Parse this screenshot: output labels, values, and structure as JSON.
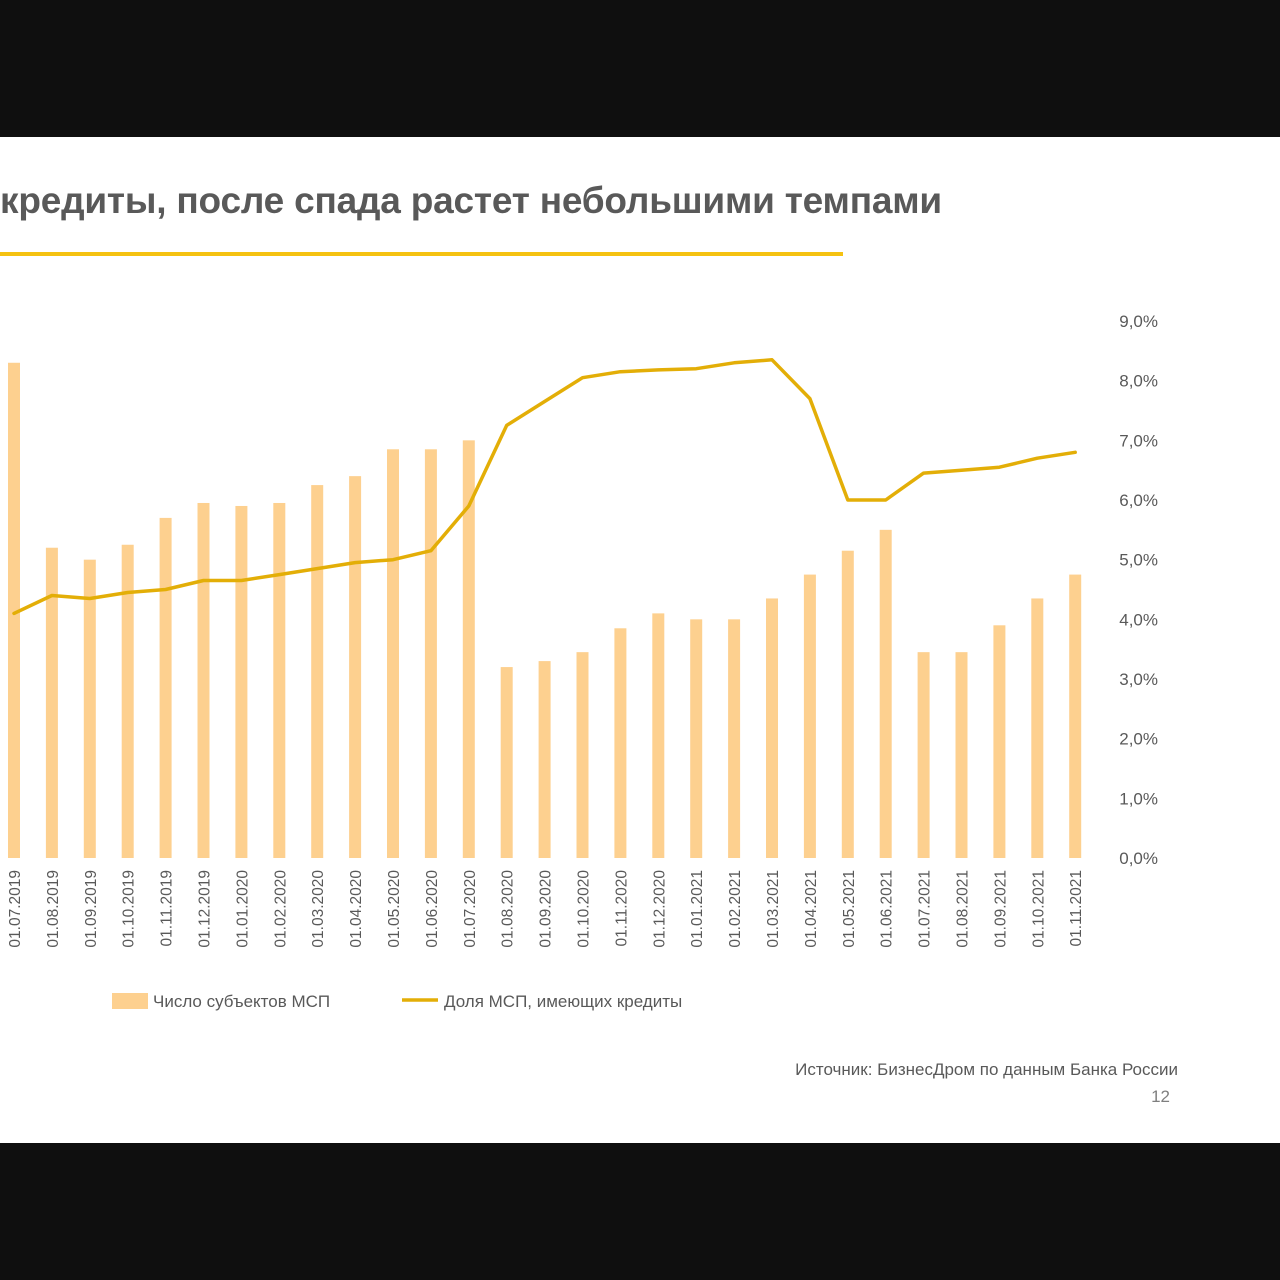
{
  "slide": {
    "title": "кредиты, после спада растет небольшими темпами",
    "source": "Источник: БизнесДром по данным Банка России",
    "page_number": "12"
  },
  "colors": {
    "bar": "#FDD08F",
    "line": "#E3AE07",
    "title_rule": "#F5C211",
    "text": "#595959"
  },
  "chart_data": {
    "type": "bar",
    "categories": [
      "01.07.2019",
      "01.08.2019",
      "01.09.2019",
      "01.10.2019",
      "01.11.2019",
      "01.12.2019",
      "01.01.2020",
      "01.02.2020",
      "01.03.2020",
      "01.04.2020",
      "01.05.2020",
      "01.06.2020",
      "01.07.2020",
      "01.08.2020",
      "01.09.2020",
      "01.10.2020",
      "01.11.2020",
      "01.12.2020",
      "01.01.2021",
      "01.02.2021",
      "01.03.2021",
      "01.04.2021",
      "01.05.2021",
      "01.06.2021",
      "01.07.2021",
      "01.08.2021",
      "01.09.2021",
      "01.10.2021",
      "01.11.2021"
    ],
    "series": [
      {
        "name": "Число субъектов МСП",
        "type": "bar",
        "axis": "left",
        "values": [
          8.3,
          5.2,
          5.0,
          5.25,
          5.7,
          5.95,
          5.9,
          5.95,
          6.25,
          6.4,
          6.85,
          6.85,
          7.0,
          3.2,
          3.3,
          3.45,
          3.85,
          4.1,
          4.0,
          4.0,
          4.35,
          4.75,
          5.15,
          5.5,
          3.45,
          3.45,
          3.9,
          4.35,
          4.75
        ]
      },
      {
        "name": "Доля МСП, имеющих кредиты",
        "type": "line",
        "axis": "right",
        "values": [
          4.1,
          4.4,
          4.35,
          4.45,
          4.5,
          4.65,
          4.65,
          4.75,
          4.85,
          4.95,
          5.0,
          5.15,
          5.9,
          7.25,
          7.65,
          8.05,
          8.15,
          8.18,
          8.2,
          8.3,
          8.35,
          7.7,
          6.0,
          6.0,
          6.45,
          6.5,
          6.55,
          6.7,
          6.8
        ]
      }
    ],
    "y_right": {
      "range": [
        0,
        9
      ],
      "tick_labels": [
        "0,0%",
        "1,0%",
        "2,0%",
        "3,0%",
        "4,0%",
        "5,0%",
        "6,0%",
        "7,0%",
        "8,0%",
        "9,0%"
      ]
    },
    "legend_position": "bottom-center",
    "grid": false
  }
}
